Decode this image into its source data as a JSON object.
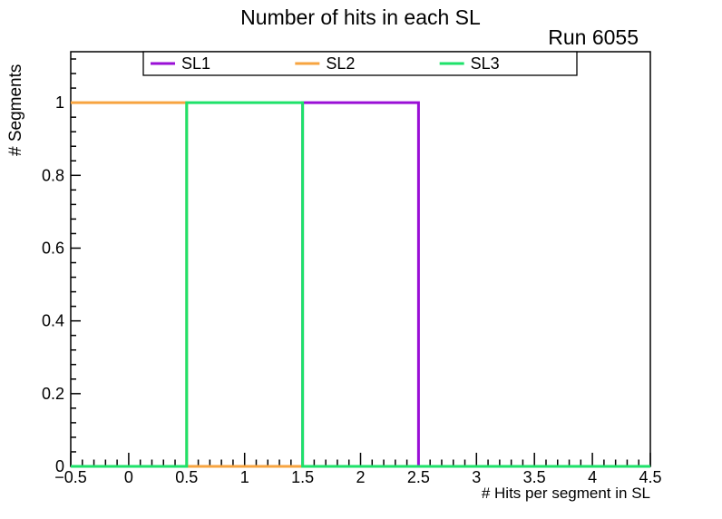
{
  "chart_data": {
    "type": "bar",
    "title": "Number of hits in each SL",
    "annotation": "Run 6055",
    "xlabel": "# Hits per segment in SL",
    "ylabel": "# Segments",
    "xlim": [
      -0.5,
      4.5
    ],
    "ylim": [
      0,
      1.14
    ],
    "grid": false,
    "legend_position": "top",
    "x_major_ticks": [
      -0.5,
      0,
      0.5,
      1,
      1.5,
      2,
      2.5,
      3,
      3.5,
      4,
      4.5
    ],
    "x_tick_labels": [
      "−0.5",
      "0",
      "0.5",
      "1",
      "1.5",
      "2",
      "2.5",
      "3",
      "3.5",
      "4",
      "4.5"
    ],
    "x_minor_step": 0.1,
    "y_major_ticks": [
      0,
      0.2,
      0.4,
      0.6,
      0.8,
      1
    ],
    "y_tick_labels": [
      "0",
      "0.2",
      "0.4",
      "0.6",
      "0.8",
      "1"
    ],
    "y_minor_step": 0.04,
    "bin_edges": [
      -0.5,
      0.5,
      1.5,
      2.5,
      3.5,
      4.5
    ],
    "categories": [
      0,
      1,
      2,
      3,
      4
    ],
    "series": [
      {
        "name": "SL1",
        "color": "#9a0fd6",
        "values": [
          0,
          0,
          1,
          0,
          0
        ]
      },
      {
        "name": "SL2",
        "color": "#f7a440",
        "values": [
          1,
          0,
          0,
          0,
          0
        ]
      },
      {
        "name": "SL3",
        "color": "#1ee26a",
        "values": [
          0,
          1,
          0,
          0,
          0
        ]
      }
    ],
    "colors": {
      "frame": "#000000",
      "background": "#ffffff",
      "sl1": "#9a0fd6",
      "sl2": "#f7a440",
      "sl3": "#1ee26a"
    }
  }
}
